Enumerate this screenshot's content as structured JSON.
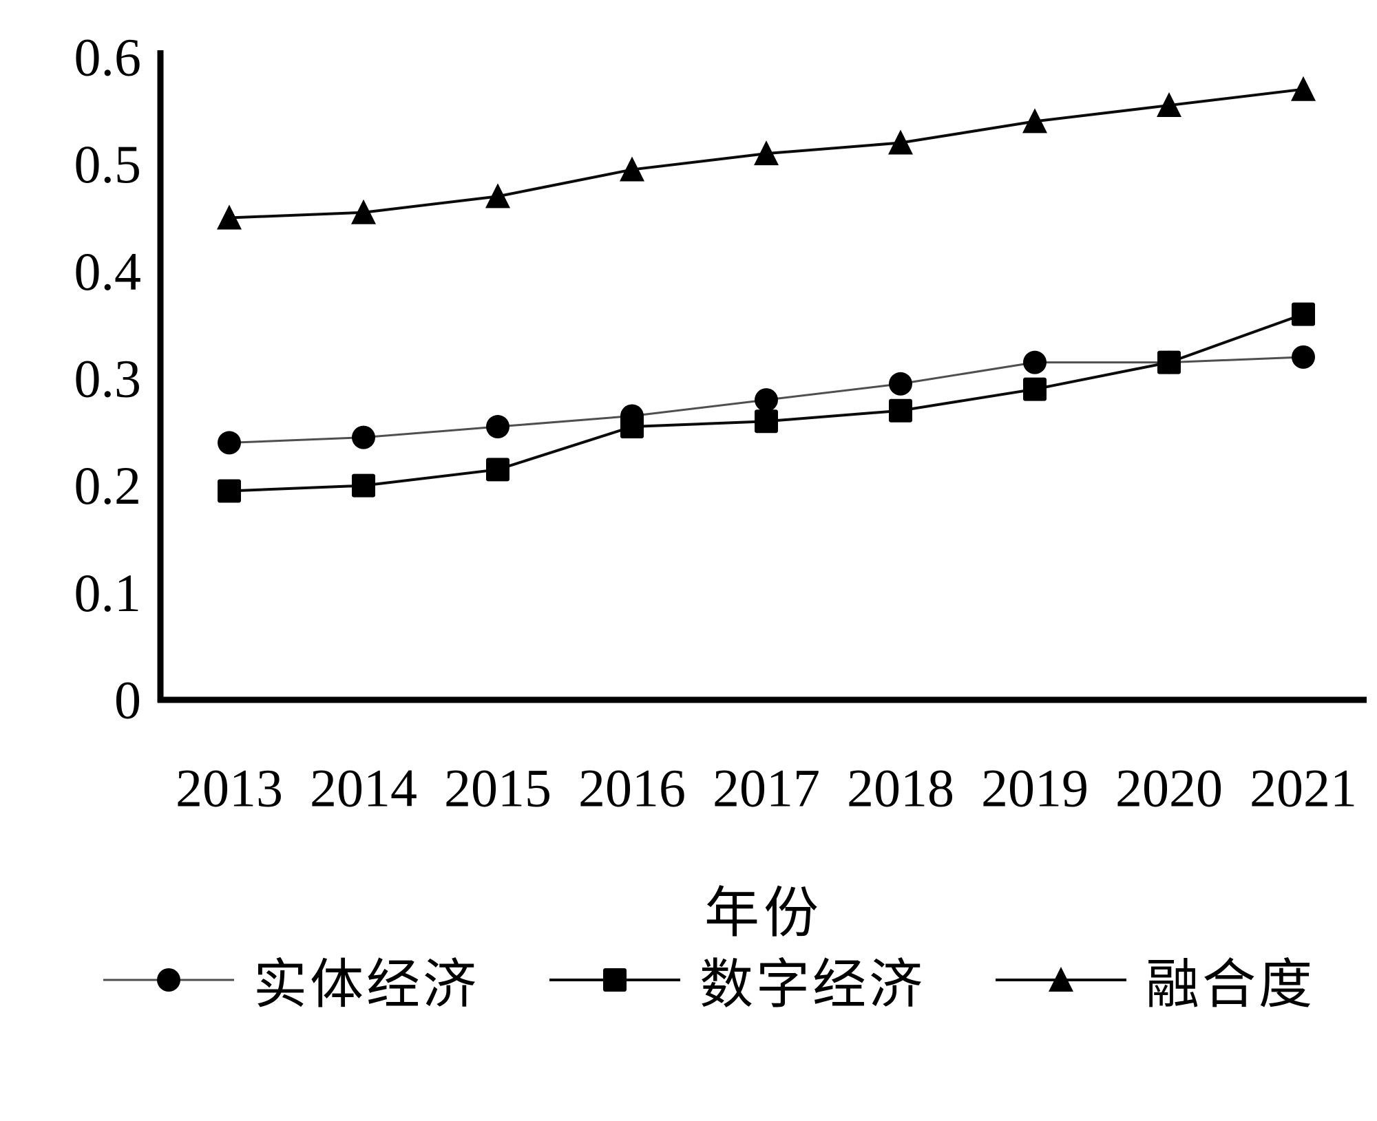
{
  "figure": {
    "background": "#ffffff",
    "axis_color": "#000000",
    "tick_label_color": "#000000"
  },
  "chart_data": {
    "type": "line",
    "title": "",
    "xlabel": "年份",
    "ylabel": "",
    "categories": [
      "2013",
      "2014",
      "2015",
      "2016",
      "2017",
      "2018",
      "2019",
      "2020",
      "2021"
    ],
    "y_tick_labels": [
      "0",
      "0.1",
      "0.2",
      "0.3",
      "0.4",
      "0.5",
      "0.6"
    ],
    "y_ticks": [
      0,
      0.1,
      0.2,
      0.3,
      0.4,
      0.5,
      0.6
    ],
    "ylim": [
      0,
      0.6
    ],
    "grid": false,
    "legend_position": "bottom",
    "series": [
      {
        "name": "实体经济",
        "marker": "circle",
        "marker_color": "#000000",
        "line_color": "#4f4f4f",
        "values": [
          0.24,
          0.245,
          0.255,
          0.265,
          0.28,
          0.295,
          0.315,
          0.315,
          0.32
        ]
      },
      {
        "name": "数字经济",
        "marker": "square",
        "marker_color": "#000000",
        "line_color": "#0a0a0a",
        "values": [
          0.195,
          0.2,
          0.215,
          0.255,
          0.26,
          0.27,
          0.29,
          0.315,
          0.36
        ]
      },
      {
        "name": "融合度",
        "marker": "triangle",
        "marker_color": "#000000",
        "line_color": "#0a0a0a",
        "values": [
          0.45,
          0.455,
          0.47,
          0.495,
          0.51,
          0.52,
          0.54,
          0.555,
          0.57
        ]
      }
    ]
  }
}
